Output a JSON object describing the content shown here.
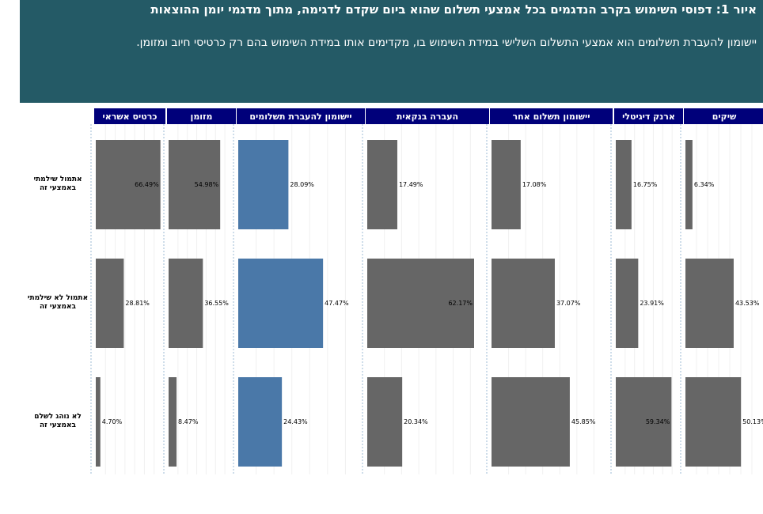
{
  "header": {
    "title": "איור 1: דפוסי השימוש בקרב הנדגמים בכל אמצעי תשלום שהוא ביום שקדם לדגימה, מתוך מדגמי יומן ההוצאות",
    "subtitle": "יישומון להעברת תשלומים הוא אמצעי התשלום השלישי במידת השימוש בו, מקדימים אותו במידת השימוש בהם רק כרטיסי חיוב ומזומן."
  },
  "colors": {
    "header_background": "#245a66",
    "panel_header_background": "#00007a",
    "bar_default": "#666666",
    "bar_highlight": "#4a78a8",
    "panel_divider": "#9dbbd4"
  },
  "chart_data": {
    "type": "bar",
    "orientation": "horizontal",
    "grid": true,
    "xlim": [
      0,
      70
    ],
    "categories": [
      "אתמול שילמתי באמצעי זה",
      "אתמול לא שילמתי באמצעי זה",
      "לא נוהג לשלם באמצעי זה"
    ],
    "series": [
      {
        "name": "כרטיס אשראי",
        "values": [
          66.49,
          28.81,
          4.7
        ],
        "labels": [
          "66.49%",
          "28.81%",
          "4.70%"
        ],
        "highlight": false
      },
      {
        "name": "מזומן",
        "values": [
          54.98,
          36.55,
          8.47
        ],
        "labels": [
          "54.98%",
          "36.55%",
          "8.47%"
        ],
        "highlight": false
      },
      {
        "name": "יישומון להעברת תשלומים",
        "values": [
          28.09,
          47.47,
          24.43
        ],
        "labels": [
          "28.09%",
          "47.47%",
          "24.43%"
        ],
        "highlight": true
      },
      {
        "name": "העברה בנקאית",
        "values": [
          17.49,
          62.17,
          20.34
        ],
        "labels": [
          "17.49%",
          "62.17%",
          "20.34%"
        ],
        "highlight": false
      },
      {
        "name": "יישומון תשלום אחר",
        "values": [
          17.08,
          37.07,
          45.85
        ],
        "labels": [
          "17.08%",
          "37.07%",
          "45.85%"
        ],
        "highlight": false
      },
      {
        "name": "ארנק דיגיטלי",
        "values": [
          16.75,
          23.91,
          59.34
        ],
        "labels": [
          "16.75%",
          "23.91%",
          "59.34%"
        ],
        "highlight": false
      },
      {
        "name": "שיקים",
        "values": [
          6.34,
          43.53,
          50.13
        ],
        "labels": [
          "6.34%",
          "43.53%",
          "50.13%"
        ],
        "highlight": false
      }
    ]
  }
}
